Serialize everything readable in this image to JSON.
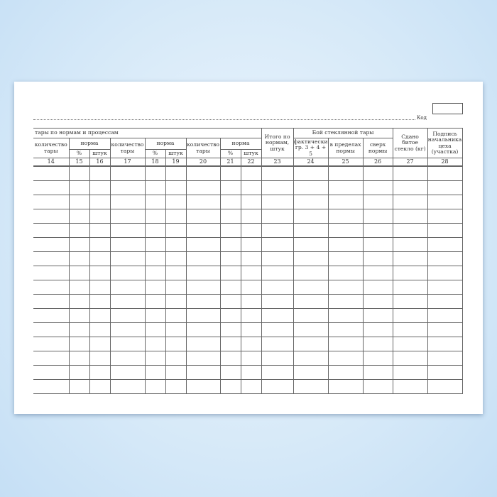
{
  "form": {
    "kod_label": "Код",
    "header": {
      "group_title": "тары по нормам и процессам",
      "qty": "количество тары",
      "norm": "норма",
      "pct": "%",
      "pcs": "штук",
      "total": "Итого по нормам, штук",
      "breakage": "Бой стеклянной тары",
      "actual": "фактически гр. 3 + 4 + 5",
      "within": "в пределах нормы",
      "over": "сверх нормы",
      "glass": "Сдано битое стекло (кг)",
      "sign": "Подпись начальника цеха (участка)"
    },
    "column_numbers": [
      "14",
      "15",
      "16",
      "17",
      "18",
      "19",
      "20",
      "21",
      "22",
      "23",
      "24",
      "25",
      "26",
      "27",
      "28"
    ],
    "empty_rows": 16
  }
}
